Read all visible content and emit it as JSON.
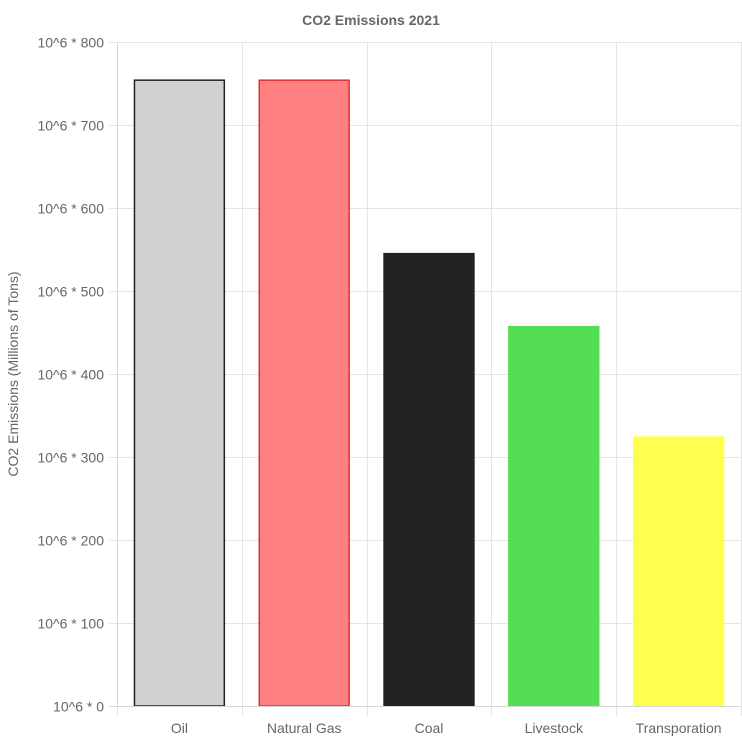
{
  "chart_data": {
    "type": "bar",
    "title": "CO2 Emissions 2021",
    "xlabel": "",
    "ylabel": "CO2 Emissions (Millions of Tons)",
    "categories": [
      "Oil",
      "Natural Gas",
      "Coal",
      "Livestock",
      "Transporation"
    ],
    "series": [
      {
        "values": [
          754,
          754,
          545,
          457,
          324
        ],
        "colors": [
          "#d1d1d1",
          "#ff8080",
          "#222222",
          "#52dd52",
          "#ffff50"
        ],
        "border_colors": [
          "#222222",
          "#e03131",
          "#222222",
          "#52dd52",
          "#ffff50"
        ]
      }
    ],
    "ylim": [
      0,
      800
    ],
    "y_ticks": [
      0,
      100,
      200,
      300,
      400,
      500,
      600,
      700,
      800
    ],
    "y_tick_labels": [
      "10^6 * 0",
      "10^6 * 100",
      "10^6 * 200",
      "10^6 * 300",
      "10^6 * 400",
      "10^6 * 500",
      "10^6 * 600",
      "10^6 * 700",
      "10^6 * 800"
    ],
    "grid": true,
    "legend": "none"
  }
}
